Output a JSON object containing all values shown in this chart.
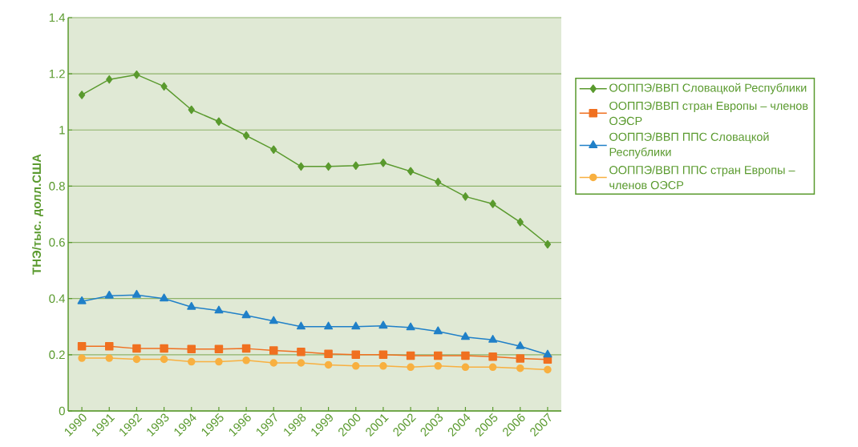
{
  "chart_data": {
    "type": "line",
    "ylabel": "ТНЭ/тыс. долл.США",
    "categories": [
      "1990",
      "1991",
      "1992",
      "1993",
      "1994",
      "1995",
      "1996",
      "1997",
      "1998",
      "1999",
      "2000",
      "2001",
      "2002",
      "2003",
      "2004",
      "2005",
      "2006",
      "2007"
    ],
    "series": [
      {
        "name": "ООППЭ/ВВП Словацкой Республики",
        "color": "#5a9a2e",
        "marker": "diamond",
        "values": [
          1.125,
          1.18,
          1.197,
          1.155,
          1.072,
          1.03,
          0.98,
          0.93,
          0.87,
          0.87,
          0.873,
          0.883,
          0.853,
          0.815,
          0.763,
          0.737,
          0.672,
          0.593
        ]
      },
      {
        "name": "ООППЭ/ВВП стран Европы – членов ОЭСР",
        "color": "#f07020",
        "marker": "square",
        "values": [
          0.23,
          0.23,
          0.222,
          0.222,
          0.22,
          0.22,
          0.222,
          0.215,
          0.21,
          0.203,
          0.2,
          0.2,
          0.197,
          0.197,
          0.197,
          0.193,
          0.187,
          0.183
        ]
      },
      {
        "name": "ООППЭ/ВВП ППС Словацкой Республики",
        "color": "#2080c8",
        "marker": "triangle",
        "values": [
          0.39,
          0.41,
          0.413,
          0.4,
          0.37,
          0.357,
          0.34,
          0.32,
          0.3,
          0.3,
          0.3,
          0.303,
          0.297,
          0.283,
          0.263,
          0.253,
          0.23,
          0.2
        ]
      },
      {
        "name": "ООППЭ/ВВП ППС стран Европы – членов ОЭСР",
        "color": "#f8b040",
        "marker": "circle",
        "values": [
          0.188,
          0.188,
          0.184,
          0.184,
          0.175,
          0.175,
          0.18,
          0.171,
          0.171,
          0.164,
          0.16,
          0.16,
          0.156,
          0.16,
          0.156,
          0.156,
          0.152,
          0.147
        ]
      }
    ],
    "ylim": [
      0,
      1.4
    ],
    "yticks": [
      0,
      0.2,
      0.4,
      0.6,
      0.8,
      1,
      1.2,
      1.4
    ],
    "grid": "y",
    "legend": "right"
  }
}
